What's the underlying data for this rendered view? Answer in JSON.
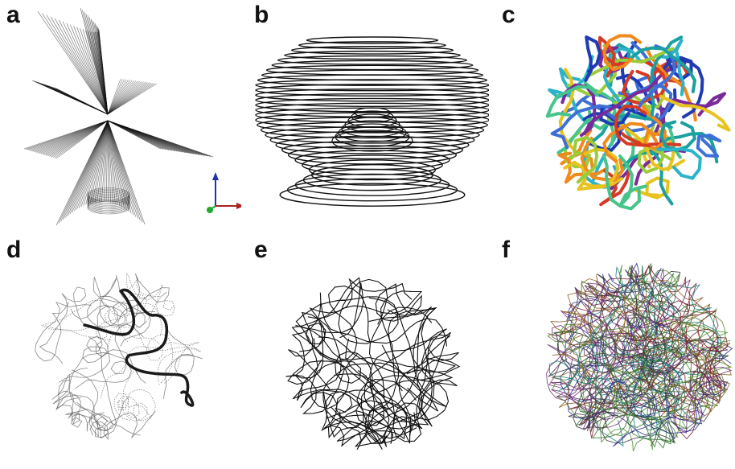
{
  "panels": [
    {
      "id": "a",
      "label": "a"
    },
    {
      "id": "b",
      "label": "b"
    },
    {
      "id": "c",
      "label": "c"
    },
    {
      "id": "d",
      "label": "d"
    },
    {
      "id": "e",
      "label": "e"
    },
    {
      "id": "f",
      "label": "f"
    }
  ],
  "colors": {
    "ink": "#111111",
    "axis_z": "#2233aa",
    "axis_x": "#aa2222",
    "axis_y": "#22aa33",
    "tube_palette": [
      "#1f3bb3",
      "#3d6fd6",
      "#2bb3c9",
      "#47c48a",
      "#9ccc3a",
      "#e8c21f",
      "#f08a1c",
      "#d63a22",
      "#7a2a9a",
      "#1aa0a0"
    ],
    "tangle_palette": [
      "#2a6b2a",
      "#6b2a6b",
      "#2a2a8a",
      "#8a5a1a",
      "#1a7a7a",
      "#7a1a2a",
      "#4a8a2a",
      "#333333"
    ]
  }
}
